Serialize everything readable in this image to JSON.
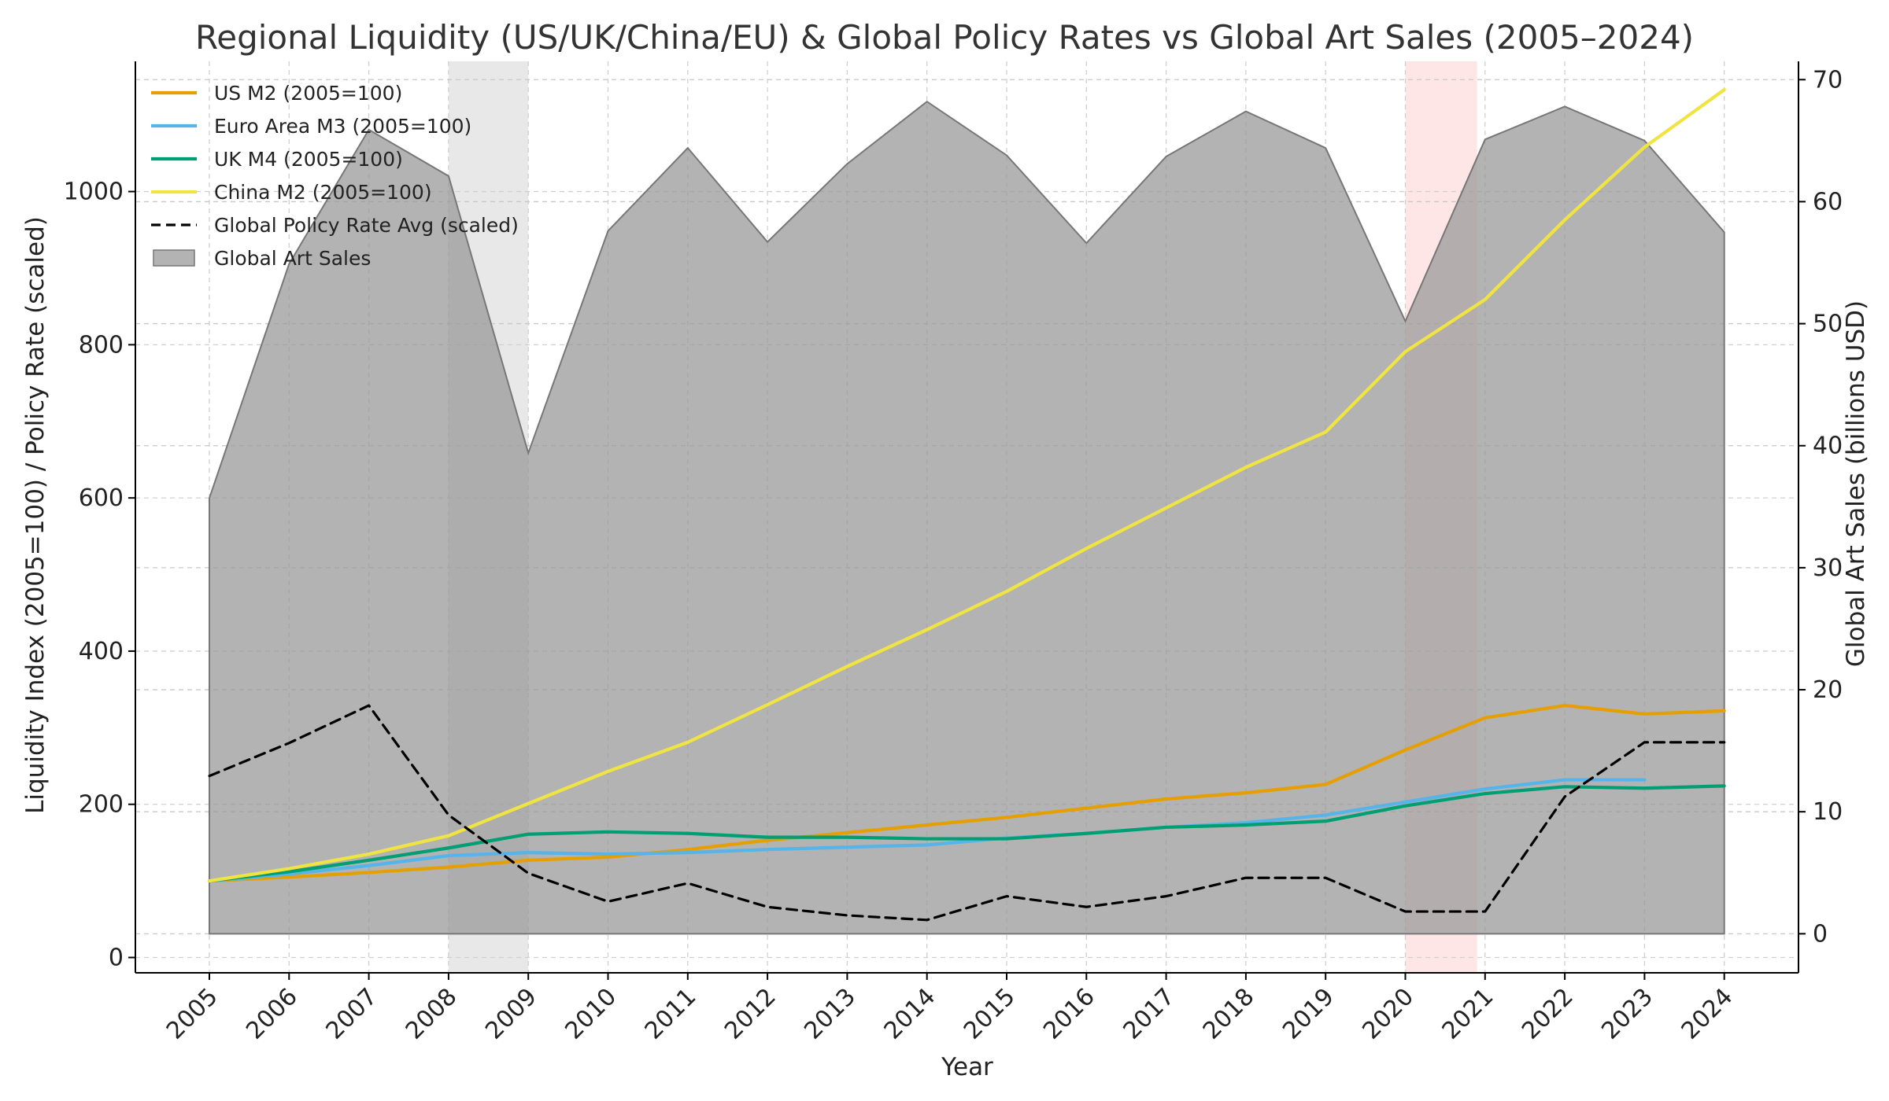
{
  "chart_data": {
    "type": "line",
    "title": "Regional Liquidity (US/UK/China/EU) & Global Policy Rates vs Global Art Sales (2005–2024)",
    "xlabel": "Year",
    "ylabel": "Liquidity Index (2005=100) / Policy Rate (scaled)",
    "y2label": "Global Art Sales (billions USD)",
    "categories": [
      "2005",
      "2006",
      "2007",
      "2008",
      "2009",
      "2010",
      "2011",
      "2012",
      "2013",
      "2014",
      "2015",
      "2016",
      "2017",
      "2018",
      "2019",
      "2020",
      "2021",
      "2022",
      "2023",
      "2024"
    ],
    "ylim": [
      -20,
      1170
    ],
    "yticks": [
      "0",
      "200",
      "400",
      "600",
      "800",
      "1000"
    ],
    "y2lim": [
      -3.2,
      71.5
    ],
    "y2ticks": [
      "0",
      "10",
      "20",
      "30",
      "40",
      "50",
      "60",
      "70"
    ],
    "grid": true,
    "legend_position": "top-left",
    "series": [
      {
        "name": "US M2 (2005=100)",
        "color": "#E69F00",
        "style": "solid",
        "axis": "left",
        "values": [
          100,
          105,
          111,
          118,
          127,
          131,
          141,
          153,
          163,
          173,
          183,
          195,
          207,
          215,
          226,
          271,
          313,
          329,
          318,
          322
        ]
      },
      {
        "name": "Euro Area M3 (2005=100)",
        "color": "#56B4E9",
        "style": "solid",
        "axis": "left",
        "values": [
          100,
          109,
          120,
          133,
          137,
          135,
          137,
          141,
          144,
          147,
          156,
          162,
          170,
          176,
          186,
          203,
          220,
          232,
          232,
          null
        ]
      },
      {
        "name": "UK M4 (2005=100)",
        "color": "#009E73",
        "style": "solid",
        "axis": "left",
        "values": [
          100,
          112,
          127,
          143,
          161,
          164,
          162,
          157,
          157,
          155,
          155,
          162,
          170,
          173,
          178,
          198,
          214,
          223,
          221,
          224
        ]
      },
      {
        "name": "China M2 (2005=100)",
        "color": "#F0E442",
        "style": "solid",
        "axis": "left",
        "values": [
          100,
          116,
          135,
          159,
          201,
          243,
          281,
          330,
          380,
          428,
          478,
          534,
          587,
          640,
          686,
          791,
          859,
          963,
          1058,
          1133
        ]
      },
      {
        "name": "Global Policy Rate Avg (scaled)",
        "color": "#000000",
        "style": "dashed",
        "axis": "left",
        "values": [
          237,
          280,
          329,
          186,
          110,
          73,
          97,
          66,
          55,
          49,
          80,
          66,
          80,
          104,
          104,
          60,
          60,
          210,
          281,
          281
        ]
      },
      {
        "name": "Global Art Sales",
        "color": "#999999",
        "style": "area",
        "axis": "right",
        "values": [
          35.7,
          54.9,
          65.9,
          62.1,
          39.4,
          57.6,
          64.4,
          56.7,
          63.1,
          68.2,
          63.8,
          56.6,
          63.7,
          67.4,
          64.4,
          50.2,
          65.1,
          67.8,
          65.0,
          57.5
        ]
      }
    ],
    "shaded_spans": [
      {
        "from": "2008",
        "to": "2009",
        "color": "#d9d9d9"
      },
      {
        "from": "2020",
        "to": "2020.9",
        "color": "#ffd6d6"
      }
    ]
  }
}
